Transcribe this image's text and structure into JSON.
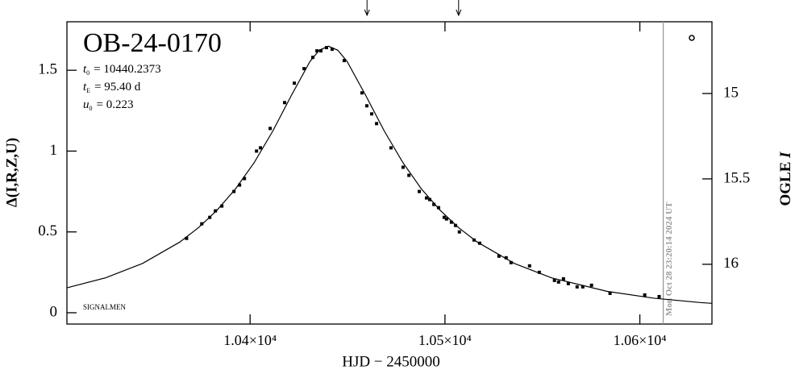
{
  "chart_data": {
    "type": "line",
    "title": "OB-24-0170",
    "params": [
      {
        "symbol": "t",
        "subscript": "0",
        "text": "= 10440.2373"
      },
      {
        "symbol": "t",
        "subscript": "E",
        "text": "= 95.40 d"
      },
      {
        "symbol": "u",
        "subscript": "0",
        "text": "= 0.223"
      }
    ],
    "annotation": "SIGNALMEN",
    "timestamp": {
      "x": 10612.0,
      "label": "Mon Oct 28 23:20:14 2024 UT"
    },
    "arrows": [
      10460.0,
      10507.0
    ],
    "xlabel": "HJD − 2450000",
    "ylabel": "Δ(I,R,Z,U)",
    "y2label": {
      "text": "OGLE",
      "italic": "I"
    },
    "xlim": [
      10306,
      10637
    ],
    "xticks": [
      {
        "value": 10400,
        "label": "1.04×10⁴"
      },
      {
        "value": 10500,
        "label": "1.05×10⁴"
      },
      {
        "value": 10600,
        "label": "1.06×10⁴"
      }
    ],
    "ylim": [
      -0.07,
      1.8
    ],
    "yticks": [
      0,
      0.5,
      1,
      1.5
    ],
    "y2lim": [
      16.35,
      14.58
    ],
    "y2ticks": [
      15,
      15.5,
      16
    ],
    "series": [
      {
        "type": "line",
        "color": "#000000",
        "x": [
          10306,
          10325.8,
          10344.8,
          10363.9,
          10373.5,
          10383.0,
          10392.5,
          10402.1,
          10411.6,
          10421.2,
          10430.7,
          10435.5,
          10440.2,
          10445.0,
          10449.8,
          10459.3,
          10468.9,
          10478.4,
          10487.9,
          10497.5,
          10507.0,
          10516.6,
          10535.6,
          10554.7,
          10583.3,
          10607.2,
          10631.0,
          10637
        ],
        "values": [
          0.154,
          0.216,
          0.305,
          0.437,
          0.526,
          0.634,
          0.766,
          0.929,
          1.123,
          1.345,
          1.554,
          1.624,
          1.649,
          1.624,
          1.554,
          1.345,
          1.123,
          0.929,
          0.766,
          0.634,
          0.526,
          0.437,
          0.305,
          0.216,
          0.132,
          0.09,
          0.063,
          0.058
        ]
      },
      {
        "type": "scatter",
        "color": "#000000",
        "x": [
          10367.4,
          10375.2,
          10379.3,
          10382.2,
          10385.5,
          10391.7,
          10394.6,
          10397.1,
          10403.3,
          10405.3,
          10410.3,
          10417.7,
          10422.7,
          10427.7,
          10432.2,
          10434.3,
          10436.3,
          10439.2,
          10442.1,
          10448.3,
          10457.4,
          10459.9,
          10462.4,
          10464.9,
          10472.3,
          10478.5,
          10481.5,
          10486.8,
          10490.5,
          10492.2,
          10494.3,
          10496.7,
          10499.6,
          10500.8,
          10503.3,
          10505.4,
          10507.4,
          10514.9,
          10517.8,
          10527.7,
          10531.4,
          10533.9,
          10543.4,
          10548.4,
          10556.2,
          10558.3,
          10560.8,
          10563.3,
          10567.8,
          10570.7,
          10575.2,
          10584.7,
          10602.5,
          10609.9
        ],
        "values": [
          0.46,
          0.55,
          0.59,
          0.63,
          0.66,
          0.75,
          0.79,
          0.83,
          1.0,
          1.02,
          1.14,
          1.3,
          1.42,
          1.51,
          1.58,
          1.62,
          1.62,
          1.64,
          1.63,
          1.56,
          1.36,
          1.28,
          1.23,
          1.17,
          1.02,
          0.9,
          0.85,
          0.75,
          0.71,
          0.7,
          0.67,
          0.65,
          0.59,
          0.58,
          0.56,
          0.54,
          0.5,
          0.45,
          0.43,
          0.35,
          0.34,
          0.31,
          0.29,
          0.25,
          0.2,
          0.19,
          0.21,
          0.18,
          0.16,
          0.16,
          0.17,
          0.12,
          0.11,
          0.1
        ]
      }
    ]
  }
}
